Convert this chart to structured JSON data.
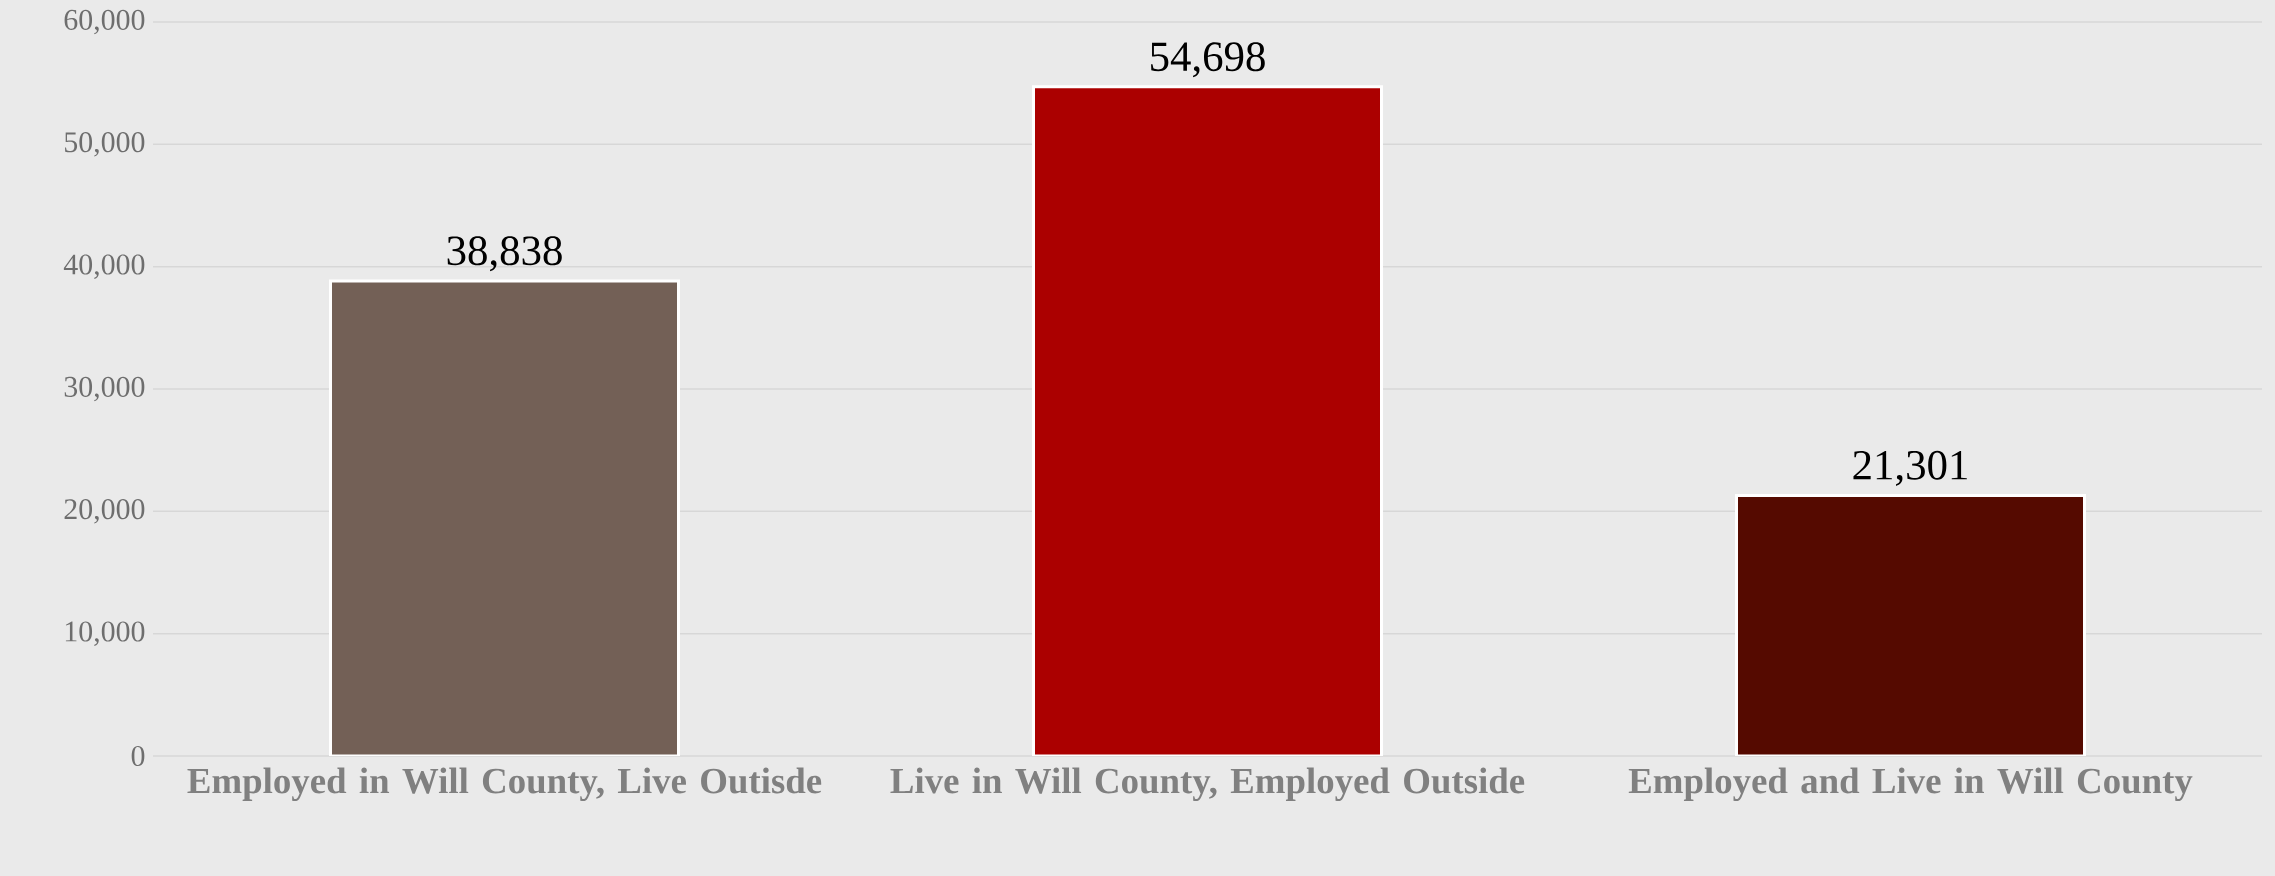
{
  "chart_data": {
    "type": "bar",
    "categories": [
      "Employed in Will County, Live Outisde",
      "Live in Will County, Employed Outside",
      "Employed and Live in Will County"
    ],
    "values": [
      38838,
      54698,
      21301
    ],
    "colors": [
      "#736056",
      "#ab0000",
      "#550a00"
    ],
    "ylim": [
      0,
      60000
    ],
    "yticks": [
      {
        "value": 0,
        "label": "0"
      },
      {
        "value": 10000,
        "label": "10,000"
      },
      {
        "value": 20000,
        "label": "20,000"
      },
      {
        "value": 30000,
        "label": "30,000"
      },
      {
        "value": 40000,
        "label": "40,000"
      },
      {
        "value": 50000,
        "label": "50,000"
      },
      {
        "value": 60000,
        "label": "60,000"
      }
    ],
    "grid": "y",
    "value_labels": [
      "38,838",
      "54,698",
      "21,301"
    ]
  }
}
